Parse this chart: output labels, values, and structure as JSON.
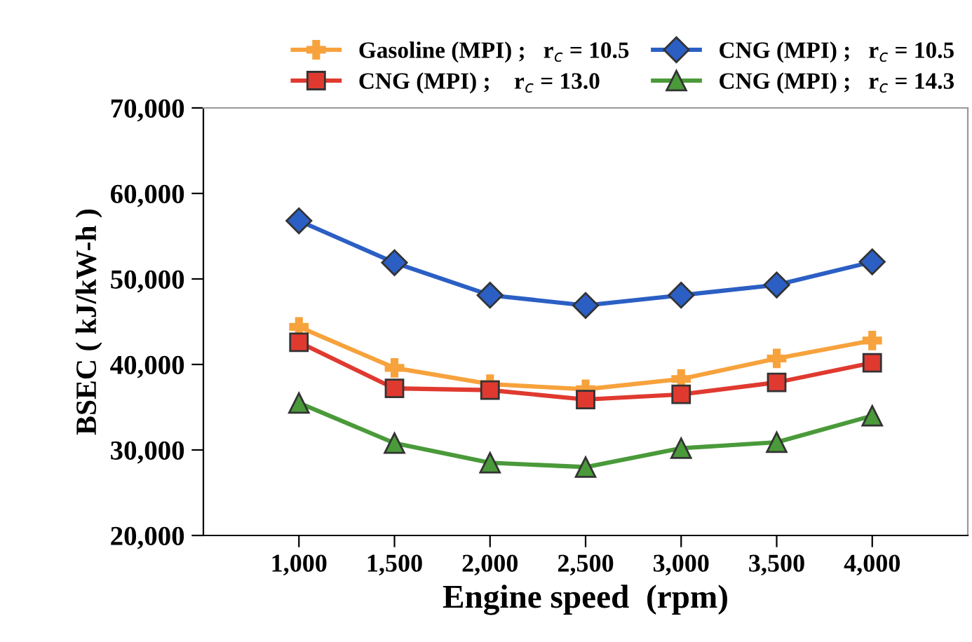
{
  "chart_data": {
    "type": "line",
    "xlabel": "Engine speed  (rpm)",
    "ylabel": "BSEC ( kJ/kW-h )",
    "categories": [
      "1,000",
      "1,500",
      "2,000",
      "2,500",
      "3,000",
      "3,500",
      "4,000"
    ],
    "series": [
      {
        "name": "Gasoline (MPI) ;   r$_{c}$ = 10.5",
        "color": "#f7a23c",
        "marker": "cross",
        "values": [
          44400,
          39600,
          37700,
          37100,
          38300,
          40700,
          42800
        ]
      },
      {
        "name": "CNG (MPI) ;   r$_{c}$ = 10.5",
        "color": "#2b5fc4",
        "marker": "diamond",
        "values": [
          56800,
          51900,
          48100,
          46900,
          48100,
          49300,
          52000
        ]
      },
      {
        "name": "CNG (MPI) ;    r$_{c}$ = 13.0",
        "color": "#e03a30",
        "marker": "square",
        "values": [
          42600,
          37200,
          37000,
          35900,
          36500,
          37900,
          40200
        ]
      },
      {
        "name": "CNG (MPI) ;   r$_{c}$ = 14.3",
        "color": "#4a9a3a",
        "marker": "triangle",
        "values": [
          35500,
          30800,
          28500,
          28000,
          30200,
          30900,
          34000
        ]
      }
    ],
    "ylim": [
      20000,
      70000
    ],
    "yticks": [
      {
        "value": 20000,
        "label": "20,000"
      },
      {
        "value": 30000,
        "label": "30,000"
      },
      {
        "value": 40000,
        "label": "40,000"
      },
      {
        "value": 50000,
        "label": "50,000"
      },
      {
        "value": 60000,
        "label": "60,000"
      },
      {
        "value": 70000,
        "label": "70,000"
      }
    ],
    "grid": false,
    "legend": "top",
    "line_style": "solid"
  }
}
